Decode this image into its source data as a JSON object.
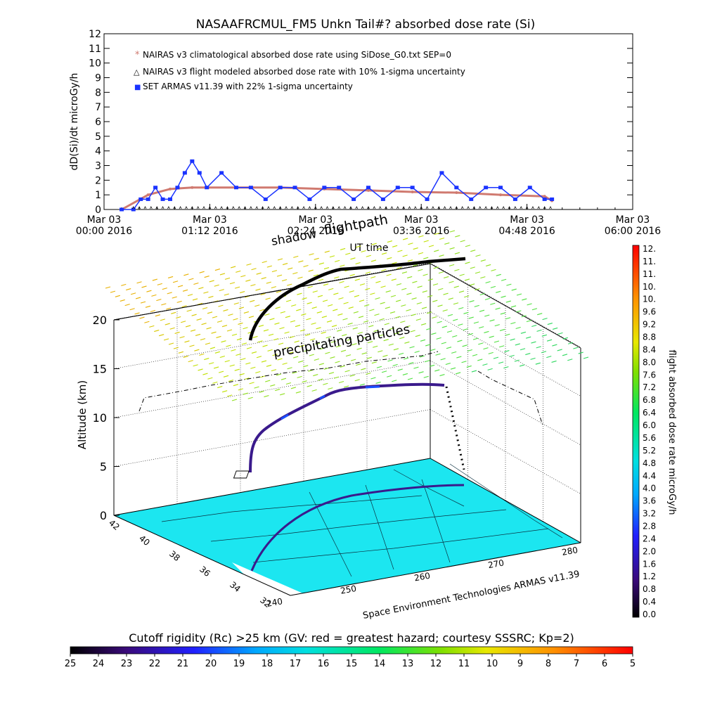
{
  "top_chart": {
    "title": "NASAAFRCMUL_FM5 Unkn Tail#? absorbed dose rate (Si)",
    "ylabel": "dD(Si)/dt microGy/h",
    "xlabel": "UT time",
    "legend": [
      {
        "label": "NAIRAS v3 climatological absorbed dose rate using SiDose_G0.txt SEP=0",
        "symbol": "*",
        "color": "#d07a70"
      },
      {
        "label": "NAIRAS v3 flight modeled absorbed dose rate with 10% 1-sigma uncertainty",
        "symbol": "△",
        "color": "#000000"
      },
      {
        "label": "SET ARMAS v11.39 with 22% 1-sigma uncertainty",
        "symbol": "■",
        "color": "#1a33ff"
      }
    ],
    "yticks": [
      "0",
      "1",
      "2",
      "3",
      "4",
      "5",
      "6",
      "7",
      "8",
      "9",
      "10",
      "11",
      "12"
    ],
    "xticks": [
      {
        "line1": "Mar 03",
        "line2": "00:00 2016"
      },
      {
        "line1": "Mar 03",
        "line2": "01:12 2016"
      },
      {
        "line1": "Mar 03",
        "line2": "02:24 2016"
      },
      {
        "line1": "Mar 03",
        "line2": "03:36 2016"
      },
      {
        "line1": "Mar 03",
        "line2": "04:48 2016"
      },
      {
        "line1": "Mar 03",
        "line2": "06:00 2016"
      }
    ]
  },
  "chart_data": [
    {
      "type": "line",
      "title": "NASAAFRCMUL_FM5 Unkn Tail#? absorbed dose rate (Si)",
      "xlabel": "UT time",
      "ylabel": "dD(Si)/dt microGy/h",
      "xlim": [
        "2016-03-03 00:00",
        "2016-03-03 06:00"
      ],
      "ylim": [
        0,
        12
      ],
      "grid": false,
      "legend": "top-left",
      "series": [
        {
          "name": "NAIRAS v3 climatological absorbed dose rate using SiDose_G0.txt SEP=0",
          "color": "#d07a70",
          "x": [
            "00:12",
            "00:30",
            "00:45",
            "01:00",
            "01:30",
            "02:00",
            "02:30",
            "03:00",
            "03:30",
            "04:00",
            "04:30",
            "05:00",
            "05:05"
          ],
          "y": [
            0,
            1.0,
            1.4,
            1.5,
            1.5,
            1.5,
            1.4,
            1.3,
            1.2,
            1.15,
            1.0,
            0.9,
            0.6
          ]
        },
        {
          "name": "SET ARMAS v11.39 with 22% 1-sigma uncertainty",
          "color": "#1a33ff",
          "x": [
            "00:12",
            "00:20",
            "00:25",
            "00:30",
            "00:35",
            "00:40",
            "00:45",
            "00:50",
            "00:55",
            "01:00",
            "01:05",
            "01:10",
            "01:20",
            "01:30",
            "01:40",
            "01:50",
            "02:00",
            "02:10",
            "02:20",
            "02:30",
            "02:40",
            "02:50",
            "03:00",
            "03:10",
            "03:20",
            "03:30",
            "03:40",
            "03:50",
            "04:00",
            "04:10",
            "04:20",
            "04:30",
            "04:40",
            "04:50",
            "05:00",
            "05:05"
          ],
          "y": [
            0,
            0,
            0.7,
            0.7,
            1.5,
            0.7,
            0.7,
            1.5,
            2.5,
            3.3,
            2.5,
            1.5,
            2.5,
            1.5,
            1.5,
            0.7,
            1.5,
            1.5,
            0.7,
            1.5,
            1.5,
            0.7,
            1.5,
            0.7,
            1.5,
            1.5,
            0.7,
            2.5,
            1.5,
            0.7,
            1.5,
            1.5,
            0.7,
            1.5,
            0.7,
            0.7
          ]
        }
      ]
    },
    {
      "type": "scatter",
      "title": "",
      "ylabel": "Altitude (km)",
      "xlabel": "",
      "zticks": [
        "0",
        "5",
        "10",
        "15",
        "20"
      ],
      "lat_ticks": [
        "32",
        "34",
        "36",
        "38",
        "40",
        "42"
      ],
      "lon_ticks": [
        "240",
        "250",
        "260",
        "270",
        "280"
      ],
      "annotations": [
        "shadow",
        "flightpath",
        "precipitating particles",
        "Space Environment Technologies ARMAS v11.39"
      ]
    }
  ],
  "right_colorbar": {
    "label": "flight absorbed dose rate microGy/h",
    "ticks": [
      "12.",
      "11.",
      "11.",
      "10.",
      "10.",
      "9.6",
      "9.2",
      "8.8",
      "8.4",
      "8.0",
      "7.6",
      "7.2",
      "6.8",
      "6.4",
      "6.0",
      "5.6",
      "5.2",
      "4.8",
      "4.4",
      "4.0",
      "3.6",
      "3.2",
      "2.8",
      "2.4",
      "2.0",
      "1.6",
      "1.2",
      "0.8",
      "0.4",
      "0.0"
    ]
  },
  "bottom_colorbar": {
    "label": "Cutoff rigidity (Rc) >25 km (GV: red = greatest hazard; courtesy SSSRC; Kp=2)",
    "ticks": [
      "25",
      "24",
      "23",
      "22",
      "21",
      "20",
      "19",
      "18",
      "17",
      "16",
      "15",
      "14",
      "13",
      "12",
      "11",
      "10",
      "9",
      "8",
      "7",
      "6",
      "5"
    ]
  },
  "colors": {
    "ground": "#1ce6f0",
    "flight_path_3d": "#3a1a8c",
    "shadow_path": "#000000",
    "nairas": "#d07a70",
    "armas": "#1a33ff"
  }
}
